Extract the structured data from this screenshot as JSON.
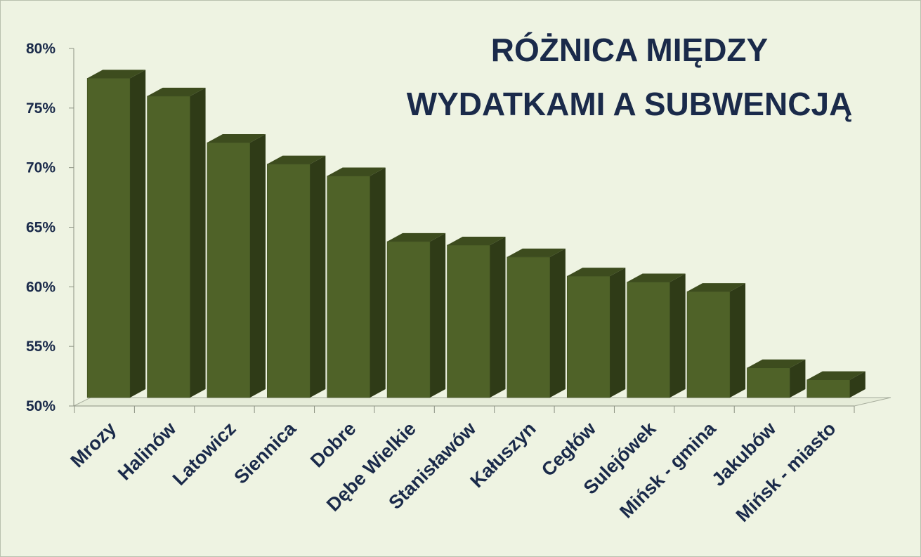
{
  "chart_data": {
    "type": "bar",
    "title_lines": [
      "RÓŻNICA MIĘDZY",
      "WYDATKAMI A SUBWENCJĄ"
    ],
    "categories": [
      "Mrozy",
      "Halinów",
      "Latowicz",
      "Siennica",
      "Dobre",
      "Dębe Wielkie",
      "Stanisławów",
      "Kałuszyn",
      "Cegłów",
      "Sulejówek",
      "Mińsk - gmina",
      "Jakubów",
      "Mińsk - miasto"
    ],
    "values": [
      77.5,
      76.0,
      72.1,
      70.3,
      69.3,
      63.8,
      63.5,
      62.5,
      60.9,
      60.4,
      59.6,
      53.2,
      52.2
    ],
    "ylim": [
      50,
      80
    ],
    "yticks": [
      50,
      55,
      60,
      65,
      70,
      75,
      80
    ],
    "ytick_labels": [
      "50%",
      "55%",
      "60%",
      "65%",
      "70%",
      "75%",
      "80%"
    ],
    "xlabel": "",
    "ylabel": "",
    "grid": false,
    "legend": "none",
    "colors": {
      "bar_front": "#4f6228",
      "bar_side": "#2f3b17",
      "bar_top": "#3d4c1e",
      "text": "#1a2a4a",
      "background": "#eef3e2"
    }
  }
}
